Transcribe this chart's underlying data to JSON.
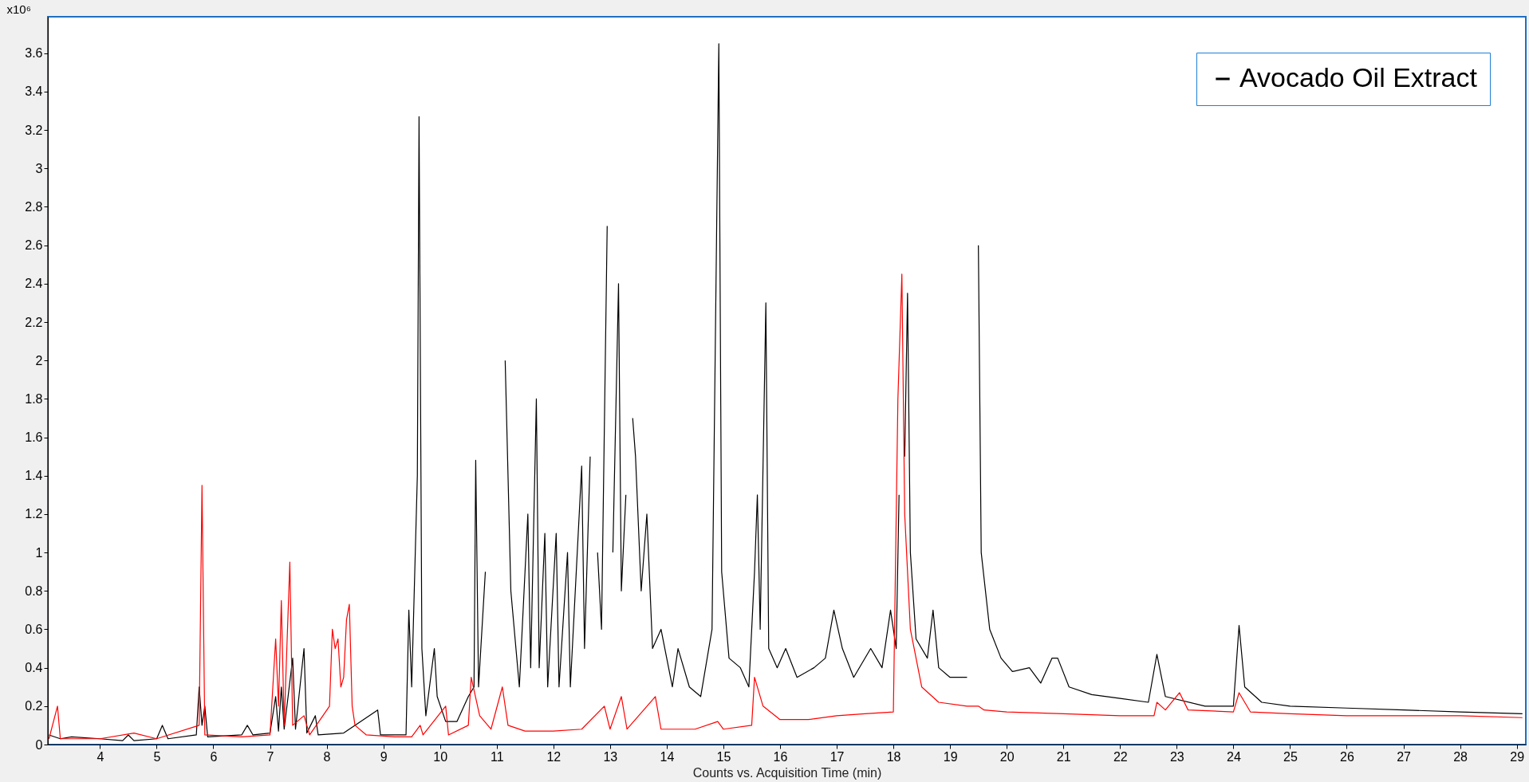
{
  "chart_data": {
    "type": "line",
    "xlabel": "Counts vs. Acquisition Time (min)",
    "ylabel": "x10⁶",
    "xlim": [
      3.08,
      29.16
    ],
    "xticks": [
      4,
      5,
      6,
      7,
      8,
      9,
      10,
      11,
      12,
      13,
      14,
      15,
      16,
      17,
      18,
      19,
      20,
      21,
      22,
      23,
      24,
      25,
      26,
      27,
      28,
      29
    ],
    "ylim": [
      0,
      3.79
    ],
    "yticks": [
      0,
      0.2,
      0.4,
      0.6,
      0.8,
      1,
      1.2,
      1.4,
      1.6,
      1.8,
      2,
      2.2,
      2.4,
      2.6,
      2.8,
      3,
      3.2,
      3.4,
      3.6
    ],
    "grid": false,
    "legend": "top right",
    "line_style": "solid",
    "marker": "none",
    "series": [
      {
        "name": "Avocado Oil Extract",
        "color": "#000000",
        "x": [
          3.1,
          3.3,
          3.5,
          4.0,
          4.4,
          4.5,
          4.6,
          5.0,
          5.1,
          5.2,
          5.7,
          5.75,
          5.8,
          5.85,
          5.9,
          6.5,
          6.6,
          6.7,
          7.0,
          7.1,
          7.15,
          7.2,
          7.25,
          7.4,
          7.45,
          7.6,
          7.65,
          7.8,
          7.85,
          8.3,
          8.9,
          8.95,
          9.4,
          9.45,
          9.5,
          9.6,
          9.63,
          9.68,
          9.75,
          9.9,
          9.95,
          10.1,
          10.3,
          10.5,
          10.6,
          10.63,
          10.68,
          10.8,
          10.87,
          11.0,
          11.06,
          11.1,
          11.15,
          11.25,
          11.4,
          11.55,
          11.6,
          11.7,
          11.75,
          11.85,
          11.9,
          12.05,
          12.1,
          12.25,
          12.3,
          12.5,
          12.55,
          12.65,
          12.72,
          12.78,
          12.85,
          12.95,
          13.0,
          13.05,
          13.15,
          13.2,
          13.28,
          13.35,
          13.4,
          13.45,
          13.55,
          13.65,
          13.75,
          13.9,
          14.1,
          14.2,
          14.4,
          14.6,
          14.8,
          14.88,
          14.92,
          14.97,
          15.1,
          15.3,
          15.45,
          15.55,
          15.6,
          15.65,
          15.75,
          15.8,
          15.95,
          16.1,
          16.3,
          16.6,
          16.8,
          16.95,
          17.1,
          17.3,
          17.6,
          17.8,
          17.95,
          18.05,
          18.1,
          18.15,
          18.2,
          18.25,
          18.3,
          18.4,
          18.6,
          18.7,
          18.8,
          19.0,
          19.3,
          19.45,
          19.5,
          19.55,
          19.7,
          19.9,
          20.1,
          20.4,
          20.6,
          20.8,
          20.9,
          21.1,
          21.5,
          22.0,
          22.5,
          22.65,
          22.8,
          23.5,
          24.0,
          24.1,
          24.2,
          24.5,
          25,
          26,
          27,
          28,
          29.1
        ],
        "values": [
          0.05,
          0.03,
          0.04,
          0.03,
          0.02,
          0.05,
          0.02,
          0.03,
          0.1,
          0.03,
          0.05,
          0.3,
          0.1,
          0.2,
          0.04,
          0.05,
          0.1,
          0.05,
          0.06,
          0.25,
          0.07,
          0.3,
          0.08,
          0.45,
          0.08,
          0.5,
          0.06,
          0.15,
          0.05,
          0.06,
          0.18,
          0.05,
          0.05,
          0.7,
          0.3,
          1.4,
          3.27,
          0.5,
          0.15,
          0.5,
          0.25,
          0.12,
          0.12,
          0.25,
          0.3,
          1.48,
          0.3,
          0.9,
          null,
          null,
          null,
          null,
          2.0,
          0.8,
          0.3,
          1.2,
          0.4,
          1.8,
          0.4,
          1.1,
          0.3,
          1.1,
          0.3,
          1.0,
          0.3,
          1.45,
          0.5,
          1.5,
          null,
          1.0,
          0.6,
          2.7,
          null,
          1.0,
          2.4,
          0.8,
          1.3,
          null,
          1.7,
          1.5,
          0.8,
          1.2,
          0.5,
          0.6,
          0.3,
          0.5,
          0.3,
          0.25,
          0.6,
          2.65,
          3.65,
          0.9,
          0.45,
          0.4,
          0.3,
          0.9,
          1.3,
          0.6,
          2.3,
          0.5,
          0.4,
          0.5,
          0.35,
          0.4,
          0.45,
          0.7,
          0.5,
          0.35,
          0.5,
          0.4,
          0.7,
          0.5,
          1.3,
          null,
          1.5,
          2.35,
          1.0,
          0.55,
          0.45,
          0.7,
          0.4,
          0.35,
          0.35,
          null,
          2.6,
          1.0,
          0.6,
          0.45,
          0.38,
          0.4,
          0.32,
          0.45,
          0.45,
          0.3,
          0.26,
          0.24,
          0.22,
          0.47,
          0.25,
          0.2,
          0.2,
          0.62,
          0.3,
          0.22,
          0.2,
          0.19,
          0.18,
          0.17,
          0.16
        ]
      },
      {
        "color": "#ff0000",
        "x": [
          3.1,
          3.25,
          3.3,
          4.0,
          4.6,
          5.0,
          5.75,
          5.8,
          5.85,
          6.5,
          7.0,
          7.1,
          7.15,
          7.2,
          7.25,
          7.35,
          7.4,
          7.6,
          7.7,
          8.05,
          8.1,
          8.15,
          8.2,
          8.25,
          8.3,
          8.35,
          8.4,
          8.45,
          8.5,
          8.7,
          9.2,
          9.5,
          9.65,
          9.7,
          10.1,
          10.15,
          10.5,
          10.55,
          10.7,
          10.9,
          11.1,
          11.2,
          11.5,
          12.0,
          12.5,
          12.9,
          13.0,
          13.2,
          13.3,
          13.8,
          13.9,
          14.5,
          14.9,
          15.0,
          15.5,
          15.55,
          15.7,
          16.0,
          16.5,
          17,
          17.5,
          18.0,
          18.08,
          18.15,
          18.2,
          18.3,
          18.5,
          18.8,
          19.3,
          19.5,
          19.6,
          20,
          21,
          22,
          22.6,
          22.65,
          22.8,
          23.05,
          23.2,
          24,
          24.1,
          24.3,
          25,
          26,
          27,
          28,
          29.1
        ],
        "values": [
          0.03,
          0.2,
          0.03,
          0.03,
          0.06,
          0.03,
          0.1,
          1.35,
          0.05,
          0.04,
          0.05,
          0.55,
          0.2,
          0.75,
          0.1,
          0.95,
          0.1,
          0.15,
          0.05,
          0.2,
          0.6,
          0.5,
          0.55,
          0.3,
          0.35,
          0.65,
          0.73,
          0.2,
          0.1,
          0.05,
          0.04,
          0.04,
          0.1,
          0.05,
          0.2,
          0.05,
          0.1,
          0.35,
          0.15,
          0.08,
          0.3,
          0.1,
          0.07,
          0.07,
          0.08,
          0.2,
          0.08,
          0.25,
          0.08,
          0.25,
          0.08,
          0.08,
          0.12,
          0.08,
          0.1,
          0.35,
          0.2,
          0.13,
          0.13,
          0.15,
          0.16,
          0.17,
          1.8,
          2.45,
          1.2,
          0.6,
          0.3,
          0.22,
          0.2,
          0.2,
          0.18,
          0.17,
          0.16,
          0.15,
          0.15,
          0.22,
          0.18,
          0.27,
          0.18,
          0.17,
          0.27,
          0.17,
          0.16,
          0.15,
          0.15,
          0.15,
          0.14
        ]
      }
    ]
  }
}
